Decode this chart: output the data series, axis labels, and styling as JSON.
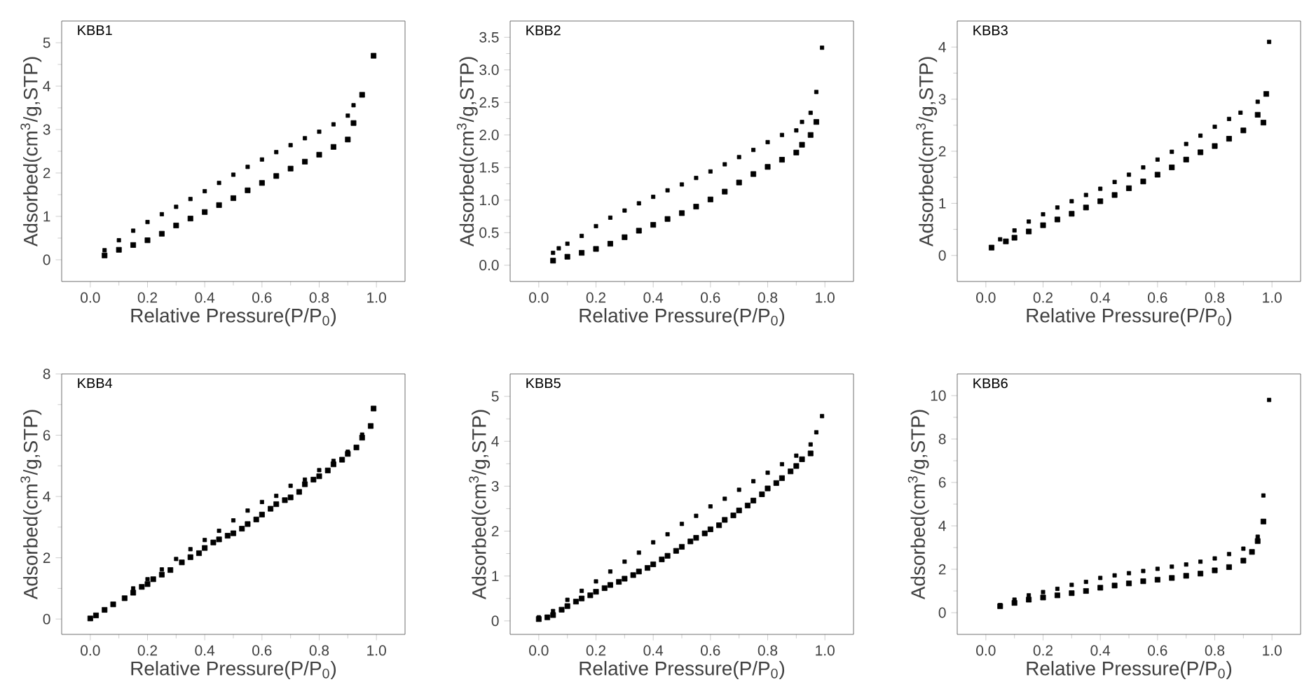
{
  "chart_data": [
    {
      "type": "scatter",
      "title": "KBB1",
      "xlabel": "Relative Pressure(P/P$_{0}$)",
      "ylabel": "Adsorbed(cm$^{3}$/g,STP)",
      "marker": "square",
      "xlim": [
        -0.1,
        1.1
      ],
      "xticks": [
        {
          "value": 0,
          "label": "0.0"
        },
        {
          "value": 0.2,
          "label": "0.2"
        },
        {
          "value": 0.4,
          "label": "0.4"
        },
        {
          "value": 0.6,
          "label": "0.6"
        },
        {
          "value": 0.8,
          "label": "0.8"
        },
        {
          "value": 1,
          "label": "1.0"
        }
      ],
      "ylim": [
        -0.5,
        5.5
      ],
      "yticks": [
        0,
        1,
        2,
        3,
        4,
        5
      ],
      "series": [
        {
          "color": "#000000",
          "x": [
            0.05,
            0.1,
            0.15,
            0.2,
            0.25,
            0.3,
            0.35,
            0.4,
            0.45,
            0.5,
            0.55,
            0.6,
            0.65,
            0.7,
            0.75,
            0.8,
            0.85,
            0.9,
            0.92,
            0.95,
            0.99
          ],
          "values": [
            0.1,
            0.23,
            0.34,
            0.45,
            0.6,
            0.79,
            0.95,
            1.1,
            1.26,
            1.42,
            1.6,
            1.77,
            1.93,
            2.1,
            2.26,
            2.42,
            2.6,
            2.77,
            3.15,
            3.8,
            4.7
          ]
        },
        {
          "color": "#000000",
          "x": [
            0.05,
            0.1,
            0.15,
            0.2,
            0.25,
            0.3,
            0.35,
            0.4,
            0.45,
            0.5,
            0.55,
            0.6,
            0.65,
            0.7,
            0.75,
            0.8,
            0.85,
            0.9,
            0.92
          ],
          "values": [
            0.22,
            0.45,
            0.67,
            0.87,
            1.05,
            1.22,
            1.4,
            1.58,
            1.77,
            1.96,
            2.14,
            2.31,
            2.48,
            2.64,
            2.8,
            2.95,
            3.12,
            3.32,
            3.56
          ]
        }
      ]
    },
    {
      "type": "scatter",
      "title": "KBB2",
      "xlabel": "Relative Pressure(P/P$_{0}$)",
      "ylabel": "Adsorbed(cm$^{3}$/g,STP)",
      "marker": "square",
      "xlim": [
        -0.1,
        1.1
      ],
      "xticks": [
        {
          "value": 0,
          "label": "0.0"
        },
        {
          "value": 0.2,
          "label": "0.2"
        },
        {
          "value": 0.4,
          "label": "0.4"
        },
        {
          "value": 0.6,
          "label": "0.6"
        },
        {
          "value": 0.8,
          "label": "0.8"
        },
        {
          "value": 1,
          "label": "1.0"
        }
      ],
      "ylim": [
        -0.25,
        3.75
      ],
      "yticks": [
        {
          "value": 0,
          "label": "0.0"
        },
        {
          "value": 0.5,
          "label": "0.5"
        },
        {
          "value": 1,
          "label": "1.0"
        },
        {
          "value": 1.5,
          "label": "1.5"
        },
        {
          "value": 2,
          "label": "2.0"
        },
        {
          "value": 2.5,
          "label": "2.5"
        },
        {
          "value": 3,
          "label": "3.0"
        },
        {
          "value": 3.5,
          "label": "3.5"
        }
      ],
      "series": [
        {
          "color": "#000000",
          "x": [
            0.05,
            0.1,
            0.15,
            0.2,
            0.25,
            0.3,
            0.35,
            0.4,
            0.45,
            0.5,
            0.55,
            0.6,
            0.65,
            0.7,
            0.75,
            0.8,
            0.85,
            0.9,
            0.92,
            0.95,
            0.97
          ],
          "values": [
            0.07,
            0.13,
            0.19,
            0.25,
            0.33,
            0.43,
            0.53,
            0.62,
            0.71,
            0.8,
            0.9,
            1.01,
            1.13,
            1.27,
            1.4,
            1.51,
            1.62,
            1.73,
            1.85,
            2.0,
            2.2
          ]
        },
        {
          "color": "#000000",
          "x": [
            0.05,
            0.07,
            0.1,
            0.15,
            0.2,
            0.25,
            0.3,
            0.35,
            0.4,
            0.45,
            0.5,
            0.55,
            0.6,
            0.65,
            0.7,
            0.75,
            0.8,
            0.85,
            0.9,
            0.92,
            0.95,
            0.97,
            0.99
          ],
          "values": [
            0.19,
            0.26,
            0.33,
            0.45,
            0.6,
            0.73,
            0.84,
            0.95,
            1.05,
            1.15,
            1.24,
            1.34,
            1.44,
            1.55,
            1.66,
            1.77,
            1.89,
            2.0,
            2.07,
            2.2,
            2.34,
            2.66,
            3.34
          ]
        }
      ]
    },
    {
      "type": "scatter",
      "title": "KBB3",
      "xlabel": "Relative Pressure(P/P$_{0}$)",
      "ylabel": "Adsorbed(cm$^{3}$/g,STP)",
      "marker": "square",
      "xlim": [
        -0.1,
        1.1
      ],
      "xticks": [
        {
          "value": 0,
          "label": "0.0"
        },
        {
          "value": 0.2,
          "label": "0.2"
        },
        {
          "value": 0.4,
          "label": "0.4"
        },
        {
          "value": 0.6,
          "label": "0.6"
        },
        {
          "value": 0.8,
          "label": "0.8"
        },
        {
          "value": 1,
          "label": "1.0"
        }
      ],
      "ylim": [
        -0.5,
        4.5
      ],
      "yticks": [
        0,
        1,
        2,
        3,
        4
      ],
      "series": [
        {
          "color": "#000000",
          "x": [
            0.02,
            0.07,
            0.1,
            0.15,
            0.2,
            0.25,
            0.3,
            0.35,
            0.4,
            0.45,
            0.5,
            0.55,
            0.6,
            0.65,
            0.7,
            0.75,
            0.8,
            0.85,
            0.9,
            0.95,
            0.97,
            0.98
          ],
          "values": [
            0.15,
            0.27,
            0.34,
            0.46,
            0.58,
            0.69,
            0.8,
            0.92,
            1.04,
            1.16,
            1.29,
            1.42,
            1.55,
            1.69,
            1.84,
            1.98,
            2.1,
            2.24,
            2.4,
            2.7,
            2.55,
            3.1
          ]
        },
        {
          "color": "#000000",
          "x": [
            0.05,
            0.1,
            0.15,
            0.2,
            0.25,
            0.3,
            0.35,
            0.4,
            0.45,
            0.5,
            0.55,
            0.6,
            0.65,
            0.7,
            0.75,
            0.8,
            0.85,
            0.89,
            0.95,
            0.99
          ],
          "values": [
            0.31,
            0.48,
            0.65,
            0.79,
            0.92,
            1.04,
            1.16,
            1.28,
            1.41,
            1.55,
            1.69,
            1.84,
            1.99,
            2.14,
            2.3,
            2.47,
            2.62,
            2.74,
            2.95,
            4.1
          ]
        }
      ]
    },
    {
      "type": "scatter",
      "title": "KBB4",
      "xlabel": "Relative Pressure(P/P$_{0}$)",
      "ylabel": "Adsorbed(cm$^{3}$/g,STP)",
      "marker": "square",
      "xlim": [
        -0.1,
        1.1
      ],
      "xticks": [
        {
          "value": 0,
          "label": "0.0"
        },
        {
          "value": 0.2,
          "label": "0.2"
        },
        {
          "value": 0.4,
          "label": "0.4"
        },
        {
          "value": 0.6,
          "label": "0.6"
        },
        {
          "value": 0.8,
          "label": "0.8"
        },
        {
          "value": 1,
          "label": "1.0"
        }
      ],
      "ylim": [
        -0.5,
        8
      ],
      "yticks": [
        0,
        2,
        4,
        6,
        8
      ],
      "series": [
        {
          "color": "#000000",
          "x": [
            0,
            0.02,
            0.05,
            0.08,
            0.12,
            0.15,
            0.18,
            0.2,
            0.22,
            0.25,
            0.28,
            0.32,
            0.35,
            0.38,
            0.4,
            0.43,
            0.45,
            0.48,
            0.5,
            0.53,
            0.55,
            0.58,
            0.6,
            0.63,
            0.65,
            0.68,
            0.7,
            0.73,
            0.75,
            0.78,
            0.8,
            0.83,
            0.85,
            0.88,
            0.9,
            0.93,
            0.95,
            0.98,
            0.99
          ],
          "values": [
            0.02,
            0.12,
            0.3,
            0.48,
            0.68,
            0.86,
            1.05,
            1.14,
            1.3,
            1.45,
            1.6,
            1.85,
            2.02,
            2.15,
            2.32,
            2.5,
            2.6,
            2.72,
            2.8,
            2.95,
            3.1,
            3.25,
            3.41,
            3.6,
            3.75,
            3.88,
            3.97,
            4.15,
            4.4,
            4.55,
            4.66,
            4.85,
            5.05,
            5.2,
            5.39,
            5.6,
            5.92,
            6.3,
            6.87
          ]
        },
        {
          "color": "#000000",
          "x": [
            0.15,
            0.2,
            0.25,
            0.3,
            0.35,
            0.4,
            0.45,
            0.5,
            0.55,
            0.6,
            0.65,
            0.7,
            0.75,
            0.8,
            0.85,
            0.9,
            0.95
          ],
          "values": [
            1.0,
            1.3,
            1.62,
            1.96,
            2.28,
            2.58,
            2.88,
            3.22,
            3.54,
            3.82,
            4.02,
            4.35,
            4.55,
            4.86,
            5.16,
            5.46,
            6.02
          ]
        }
      ]
    },
    {
      "type": "scatter",
      "title": "KBB5",
      "xlabel": "Relative Pressure(P/P$_{0}$)",
      "ylabel": "Adsorbed(cm$^{3}$/g,STP)",
      "marker": "square",
      "xlim": [
        -0.1,
        1.1
      ],
      "xticks": [
        {
          "value": 0,
          "label": "0.0"
        },
        {
          "value": 0.2,
          "label": "0.2"
        },
        {
          "value": 0.4,
          "label": "0.4"
        },
        {
          "value": 0.6,
          "label": "0.6"
        },
        {
          "value": 0.8,
          "label": "0.8"
        },
        {
          "value": 1,
          "label": "1.0"
        }
      ],
      "ylim": [
        -0.3,
        5.5
      ],
      "yticks": [
        0,
        1,
        2,
        3,
        4,
        5
      ],
      "series": [
        {
          "color": "#000000",
          "x": [
            0,
            0.03,
            0.05,
            0.08,
            0.1,
            0.13,
            0.15,
            0.18,
            0.2,
            0.23,
            0.25,
            0.28,
            0.3,
            0.33,
            0.35,
            0.38,
            0.4,
            0.43,
            0.45,
            0.48,
            0.5,
            0.53,
            0.55,
            0.58,
            0.6,
            0.63,
            0.65,
            0.68,
            0.7,
            0.73,
            0.75,
            0.78,
            0.8,
            0.83,
            0.85,
            0.88,
            0.9,
            0.92,
            0.95
          ],
          "values": [
            0.04,
            0.08,
            0.13,
            0.25,
            0.33,
            0.43,
            0.5,
            0.57,
            0.65,
            0.73,
            0.8,
            0.87,
            0.94,
            1.02,
            1.1,
            1.18,
            1.26,
            1.37,
            1.45,
            1.56,
            1.65,
            1.77,
            1.85,
            1.95,
            2.04,
            2.13,
            2.25,
            2.35,
            2.46,
            2.57,
            2.68,
            2.82,
            2.95,
            3.07,
            3.18,
            3.33,
            3.45,
            3.6,
            3.73
          ]
        },
        {
          "color": "#000000",
          "x": [
            0,
            0.05,
            0.1,
            0.15,
            0.2,
            0.25,
            0.3,
            0.35,
            0.4,
            0.45,
            0.5,
            0.55,
            0.6,
            0.65,
            0.7,
            0.75,
            0.8,
            0.85,
            0.9,
            0.95,
            0.97,
            0.99
          ],
          "values": [
            0.08,
            0.22,
            0.47,
            0.67,
            0.88,
            1.1,
            1.32,
            1.52,
            1.75,
            1.93,
            2.16,
            2.34,
            2.55,
            2.72,
            2.92,
            3.11,
            3.3,
            3.49,
            3.68,
            3.93,
            4.2,
            4.56
          ]
        }
      ]
    },
    {
      "type": "scatter",
      "title": "KBB6",
      "xlabel": "Relative Pressure(P/P$_{0}$)",
      "ylabel": "Adsorbed(cm$^{3}$/g,STP)",
      "marker": "square",
      "xlim": [
        -0.1,
        1.1
      ],
      "xticks": [
        {
          "value": 0,
          "label": "0.0"
        },
        {
          "value": 0.2,
          "label": "0.2"
        },
        {
          "value": 0.4,
          "label": "0.4"
        },
        {
          "value": 0.6,
          "label": "0.6"
        },
        {
          "value": 0.8,
          "label": "0.8"
        },
        {
          "value": 1,
          "label": "1.0"
        }
      ],
      "ylim": [
        -1,
        11
      ],
      "yticks": [
        0,
        2,
        4,
        6,
        8,
        10
      ],
      "series": [
        {
          "color": "#000000",
          "x": [
            0.05,
            0.1,
            0.15,
            0.2,
            0.25,
            0.3,
            0.35,
            0.4,
            0.45,
            0.5,
            0.55,
            0.6,
            0.65,
            0.7,
            0.75,
            0.8,
            0.85,
            0.9,
            0.93,
            0.95,
            0.97
          ],
          "values": [
            0.3,
            0.45,
            0.6,
            0.7,
            0.8,
            0.9,
            1.0,
            1.15,
            1.25,
            1.35,
            1.45,
            1.52,
            1.6,
            1.7,
            1.8,
            1.95,
            2.1,
            2.4,
            2.8,
            3.3,
            4.2
          ]
        },
        {
          "color": "#000000",
          "x": [
            0.05,
            0.1,
            0.15,
            0.2,
            0.25,
            0.3,
            0.35,
            0.4,
            0.45,
            0.5,
            0.55,
            0.6,
            0.65,
            0.7,
            0.75,
            0.8,
            0.85,
            0.9,
            0.95,
            0.97,
            0.99
          ],
          "values": [
            0.35,
            0.6,
            0.8,
            0.95,
            1.1,
            1.28,
            1.42,
            1.6,
            1.72,
            1.82,
            1.92,
            2.02,
            2.12,
            2.22,
            2.35,
            2.5,
            2.7,
            2.95,
            3.5,
            5.4,
            9.8
          ]
        }
      ]
    }
  ]
}
